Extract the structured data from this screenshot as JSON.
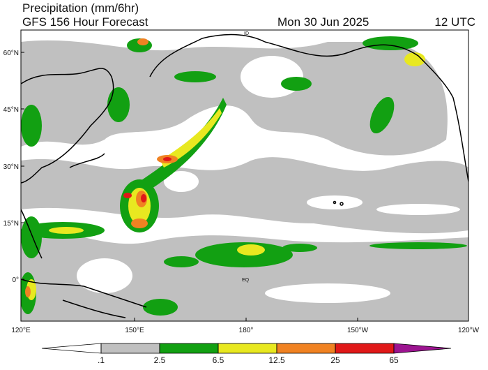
{
  "header": {
    "title": "Precipitation (mm/6hr)",
    "subtitle": "GFS 156 Hour Forecast",
    "date": "Mon 30 Jun 2025",
    "time": "12 UTC"
  },
  "map": {
    "lat_labels": [
      "60°N",
      "45°N",
      "30°N",
      "15°N",
      "0°"
    ],
    "lon_labels": [
      "120°E",
      "150°E",
      "180°",
      "150°W",
      "120°W"
    ],
    "annotations": [
      "ID",
      "EQ"
    ]
  },
  "colorbar": {
    "thresholds": [
      {
        "value": 0.1,
        "label": ".1"
      },
      2.5,
      6.5,
      12.5,
      25,
      65
    ],
    "colors": [
      "#ffffff",
      "#c0c0c0",
      "#12a012",
      "#e8e820",
      "#f08222",
      "#e01818",
      "#9c1490"
    ]
  }
}
